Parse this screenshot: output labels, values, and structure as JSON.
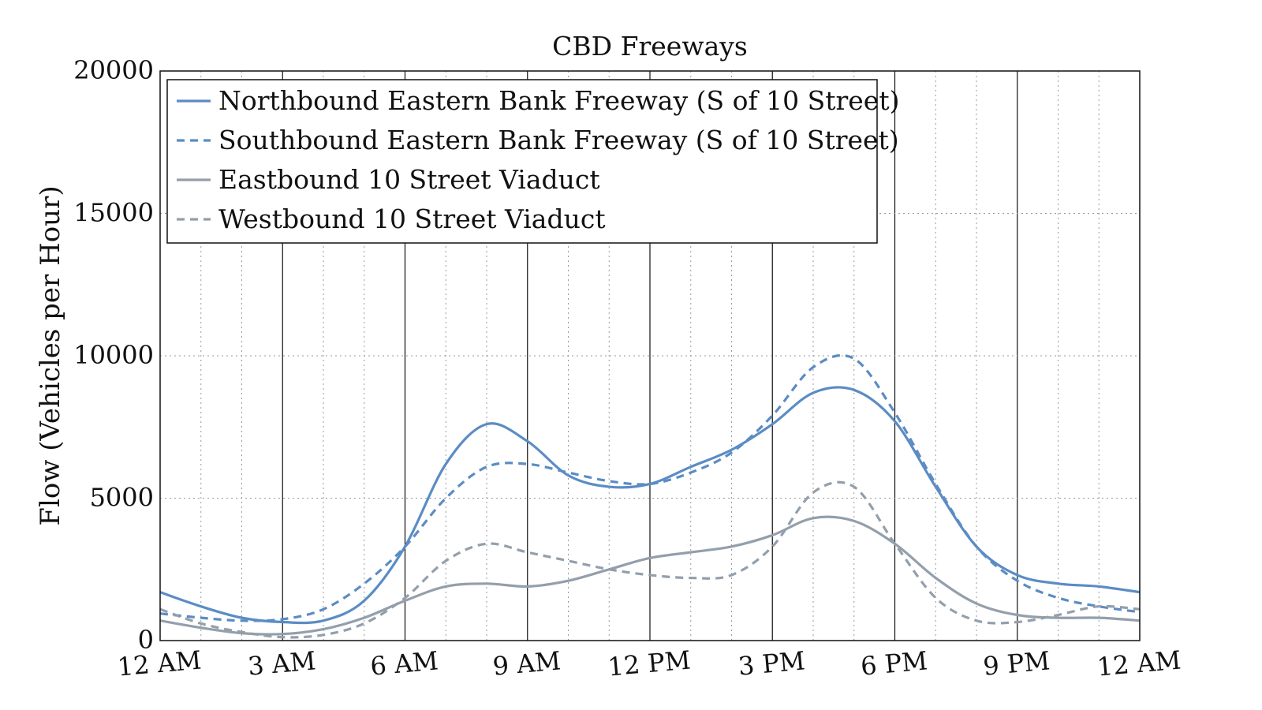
{
  "chart_data": {
    "type": "line",
    "title": "CBD Freeways",
    "xlabel": "",
    "ylabel": "Flow (Vehicles per Hour)",
    "xlim": [
      0,
      24
    ],
    "ylim": [
      0,
      20000
    ],
    "x_ticks": [
      {
        "value": 0,
        "label": "12 AM"
      },
      {
        "value": 3,
        "label": "3 AM"
      },
      {
        "value": 6,
        "label": "6 AM"
      },
      {
        "value": 9,
        "label": "9 AM"
      },
      {
        "value": 12,
        "label": "12 PM"
      },
      {
        "value": 15,
        "label": "3 PM"
      },
      {
        "value": 18,
        "label": "6 PM"
      },
      {
        "value": 21,
        "label": "9 PM"
      },
      {
        "value": 24,
        "label": "12 AM"
      }
    ],
    "y_ticks": [
      {
        "value": 0,
        "label": "0"
      },
      {
        "value": 5000,
        "label": "5000"
      },
      {
        "value": 10000,
        "label": "10000"
      },
      {
        "value": 15000,
        "label": "15000"
      },
      {
        "value": 20000,
        "label": "20000"
      }
    ],
    "grid": true,
    "legend_position": "top-left",
    "x": [
      0,
      1,
      2,
      3,
      4,
      5,
      6,
      7,
      8,
      9,
      10,
      11,
      12,
      13,
      14,
      15,
      16,
      17,
      18,
      19,
      20,
      21,
      22,
      23,
      24
    ],
    "series": [
      {
        "name": "Northbound Eastern Bank Freeway (S of 10 Street)",
        "color": "#5b8cc4",
        "dash": "solid",
        "values": [
          1700,
          1200,
          800,
          650,
          700,
          1400,
          3300,
          6200,
          7600,
          7000,
          5800,
          5400,
          5500,
          6100,
          6700,
          7600,
          8700,
          8800,
          7700,
          5400,
          3300,
          2300,
          2000,
          1900,
          1700
        ]
      },
      {
        "name": "Southbound Eastern Bank Freeway (S of 10 Street)",
        "color": "#5b8cc4",
        "dash": "dashed",
        "values": [
          950,
          800,
          700,
          750,
          1100,
          2000,
          3300,
          5000,
          6100,
          6200,
          5900,
          5600,
          5500,
          5900,
          6600,
          7900,
          9600,
          9900,
          8000,
          5500,
          3300,
          2100,
          1500,
          1200,
          1000
        ]
      },
      {
        "name": "Eastbound 10 Street Viaduct",
        "color": "#939fab",
        "dash": "solid",
        "values": [
          700,
          450,
          260,
          230,
          400,
          800,
          1400,
          1900,
          2000,
          1900,
          2100,
          2500,
          2900,
          3100,
          3300,
          3700,
          4300,
          4200,
          3400,
          2200,
          1300,
          900,
          800,
          800,
          700
        ]
      },
      {
        "name": "Westbound 10 Street Viaduct",
        "color": "#939fab",
        "dash": "dashed",
        "values": [
          1100,
          600,
          300,
          120,
          200,
          600,
          1500,
          2800,
          3400,
          3100,
          2800,
          2500,
          2300,
          2200,
          2300,
          3300,
          5200,
          5400,
          3400,
          1500,
          700,
          650,
          900,
          1200,
          1100
        ]
      }
    ]
  }
}
